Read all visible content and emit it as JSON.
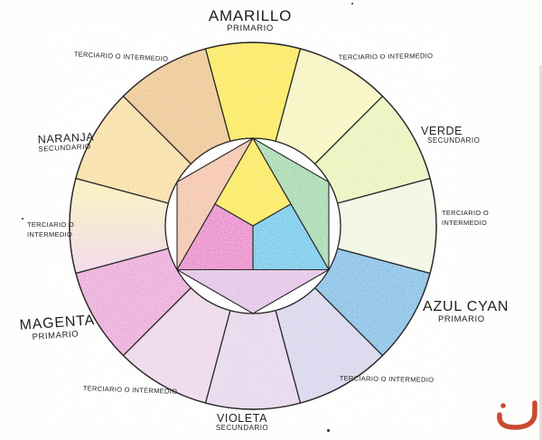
{
  "labels": {
    "tertiary": "TERCIARIO O INTERMEDIO",
    "tertiary_line1": "TERCIARIO O",
    "tertiary_line2": "INTERMEDIO",
    "amarillo": {
      "name": "AMARILLO",
      "role": "PRIMARIO"
    },
    "verde": {
      "name": "VERDE",
      "role": "SECUNDARIO"
    },
    "azul_cyan": {
      "name": "AZUL CYAN",
      "role": "PRIMARIO"
    },
    "violeta": {
      "name": "VIOLETA",
      "role": "SECUNDARIO"
    },
    "magenta": {
      "name": "MAGENTA",
      "role": "PRIMARIO"
    },
    "naranja": {
      "name": "NARANJA",
      "role": "SECUNDARIO"
    }
  },
  "wheel": {
    "line_color": "#2b2b2b",
    "segments": [
      {
        "id": "amarillo",
        "role": "primario",
        "center_angle": 0,
        "color": "#F9E01B"
      },
      {
        "id": "amarillo-verde",
        "role": "terciario",
        "center_angle": 30,
        "color": "#F3EFA6"
      },
      {
        "id": "verde",
        "role": "secundario",
        "center_angle": 60,
        "color": "#E2EDA0"
      },
      {
        "id": "verde-azul",
        "role": "terciario",
        "center_angle": 90,
        "color": "#EAF2D8"
      },
      {
        "id": "azul-cyan",
        "role": "primario",
        "center_angle": 120,
        "color": "#57A7DB"
      },
      {
        "id": "azul-violeta",
        "role": "terciario",
        "center_angle": 150,
        "color": "#C8C4E4"
      },
      {
        "id": "violeta",
        "role": "secundario",
        "center_angle": 180,
        "color": "#DCC6E5"
      },
      {
        "id": "violeta-magenta",
        "role": "terciario",
        "center_angle": 210,
        "color": "#E5C5E0"
      },
      {
        "id": "magenta",
        "role": "primario",
        "center_angle": 240,
        "color": "#E289C9"
      },
      {
        "id": "magenta-naranja",
        "role": "terciario",
        "center_angle": 270,
        "color": "#F2DFC0",
        "gradient": {
          "from": "#F5E8A4",
          "to": "#ECC9DA"
        }
      },
      {
        "id": "naranja",
        "role": "secundario",
        "center_angle": 300,
        "color": "#F5D181"
      },
      {
        "id": "naranja-amarillo",
        "role": "terciario",
        "center_angle": 330,
        "color": "#E8B067"
      }
    ],
    "inner_shapes": [
      {
        "id": "amarillo",
        "kind": "kite",
        "color": "#F9E01B"
      },
      {
        "id": "cyan",
        "kind": "kite",
        "color": "#41B5E2"
      },
      {
        "id": "magenta",
        "kind": "kite",
        "color": "#E160B7"
      },
      {
        "id": "verde",
        "kind": "triangle",
        "color": "#83C990"
      },
      {
        "id": "violeta",
        "kind": "triangle",
        "color": "#D6ACDB"
      },
      {
        "id": "naranja",
        "kind": "triangle",
        "color": "#F0AC89"
      }
    ]
  },
  "logo": {
    "color": "#C84B30"
  }
}
